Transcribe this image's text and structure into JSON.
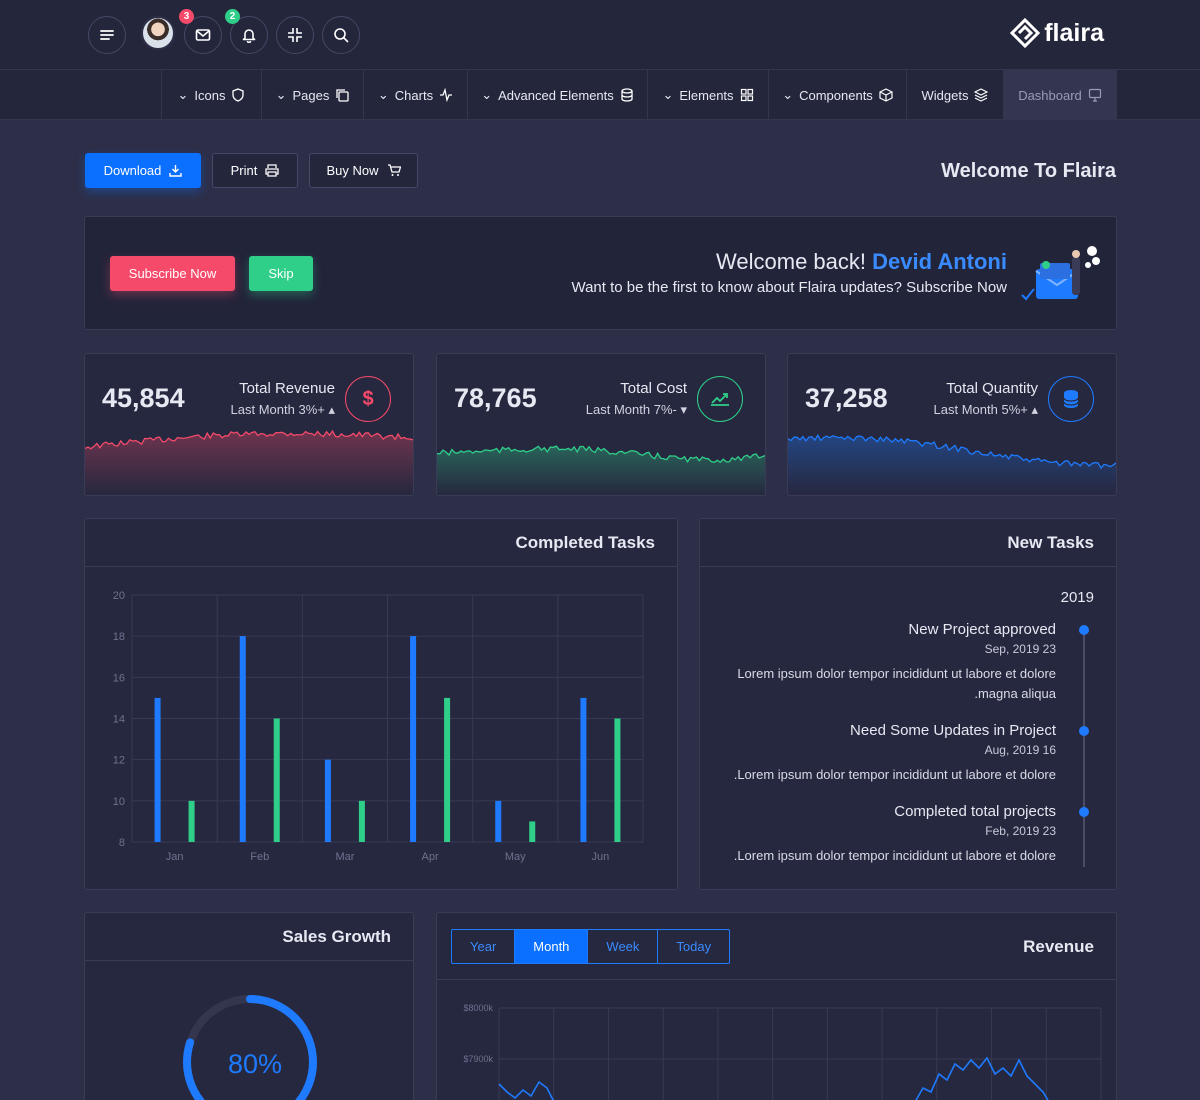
{
  "topbar": {
    "mail_badge": "3",
    "bell_badge": "2",
    "brand": "flaira"
  },
  "nav": {
    "items": [
      {
        "label": "Icons",
        "has_chevron": true,
        "icon": "shield-icon"
      },
      {
        "label": "Pages",
        "has_chevron": true,
        "icon": "copy-icon"
      },
      {
        "label": "Charts",
        "has_chevron": true,
        "icon": "activity-icon"
      },
      {
        "label": "Advanced Elements",
        "has_chevron": true,
        "icon": "database-icon"
      },
      {
        "label": "Elements",
        "has_chevron": true,
        "icon": "grid-icon"
      },
      {
        "label": "Components",
        "has_chevron": true,
        "icon": "box-icon"
      },
      {
        "label": "Widgets",
        "has_chevron": false,
        "icon": "layers-icon"
      },
      {
        "label": "Dashboard",
        "has_chevron": false,
        "icon": "monitor-icon",
        "active": true
      }
    ]
  },
  "actions": {
    "download": "Download",
    "print": "Print",
    "buy_now": "Buy Now"
  },
  "page": {
    "title": "Welcome To Flaira"
  },
  "welcome": {
    "subscribe": "Subscribe Now",
    "skip": "Skip",
    "greeting": "Welcome back!",
    "name": "Devid Antoni",
    "subtitle": "Want to be the first to know about Flaira updates? Subscribe Now"
  },
  "stats": [
    {
      "value": "45,854",
      "label": "Total Revenue",
      "sub": "Last Month 3%+",
      "trend": "up",
      "color": "#f54a6a",
      "icon": "dollar-icon"
    },
    {
      "value": "78,765",
      "label": "Total Cost",
      "sub": "Last Month 7%-",
      "trend": "down",
      "color": "#2fcf8a",
      "icon": "trending-up-icon"
    },
    {
      "value": "37,258",
      "label": "Total Quantity",
      "sub": "Last Month 5%+",
      "trend": "up",
      "color": "#1e7bff",
      "icon": "database-icon"
    }
  ],
  "completed_tasks": {
    "title": "Completed Tasks"
  },
  "chart_data": {
    "type": "bar",
    "categories": [
      "Jan",
      "Feb",
      "Mar",
      "Apr",
      "May",
      "Jun"
    ],
    "series": [
      {
        "values": [
          15,
          18,
          12,
          18,
          10,
          15
        ],
        "color": "#1e7bff"
      },
      {
        "values": [
          10,
          14,
          10,
          15,
          9,
          14
        ],
        "color": "#2fcf8a"
      }
    ],
    "ylim": [
      8,
      20
    ],
    "yticks": [
      8,
      10,
      12,
      14,
      16,
      18,
      20
    ],
    "grid": true
  },
  "new_tasks": {
    "title": "New Tasks",
    "year": "2019",
    "items": [
      {
        "title": "New Project approved",
        "date": "Sep, 2019 23",
        "desc": "Lorem ipsum dolor tempor incididunt ut labore et dolore",
        "desc2": ".magna aliqua"
      },
      {
        "title": "Need Some Updates in Project",
        "date": "Aug, 2019 16",
        "desc": ".Lorem ipsum dolor tempor incididunt ut labore et dolore",
        "desc2": ""
      },
      {
        "title": "Completed total projects",
        "date": "Feb, 2019 23",
        "desc": ".Lorem ipsum dolor tempor incididunt ut labore et dolore",
        "desc2": ""
      }
    ]
  },
  "sales_growth": {
    "title": "Sales Growth",
    "percent_label": "80%",
    "percent": 80
  },
  "revenue": {
    "title": "Revenue",
    "tabs": [
      "Year",
      "Month",
      "Week",
      "Today"
    ],
    "active_tab": "Month",
    "y_labels": [
      "$8000k",
      "$7900k"
    ]
  }
}
